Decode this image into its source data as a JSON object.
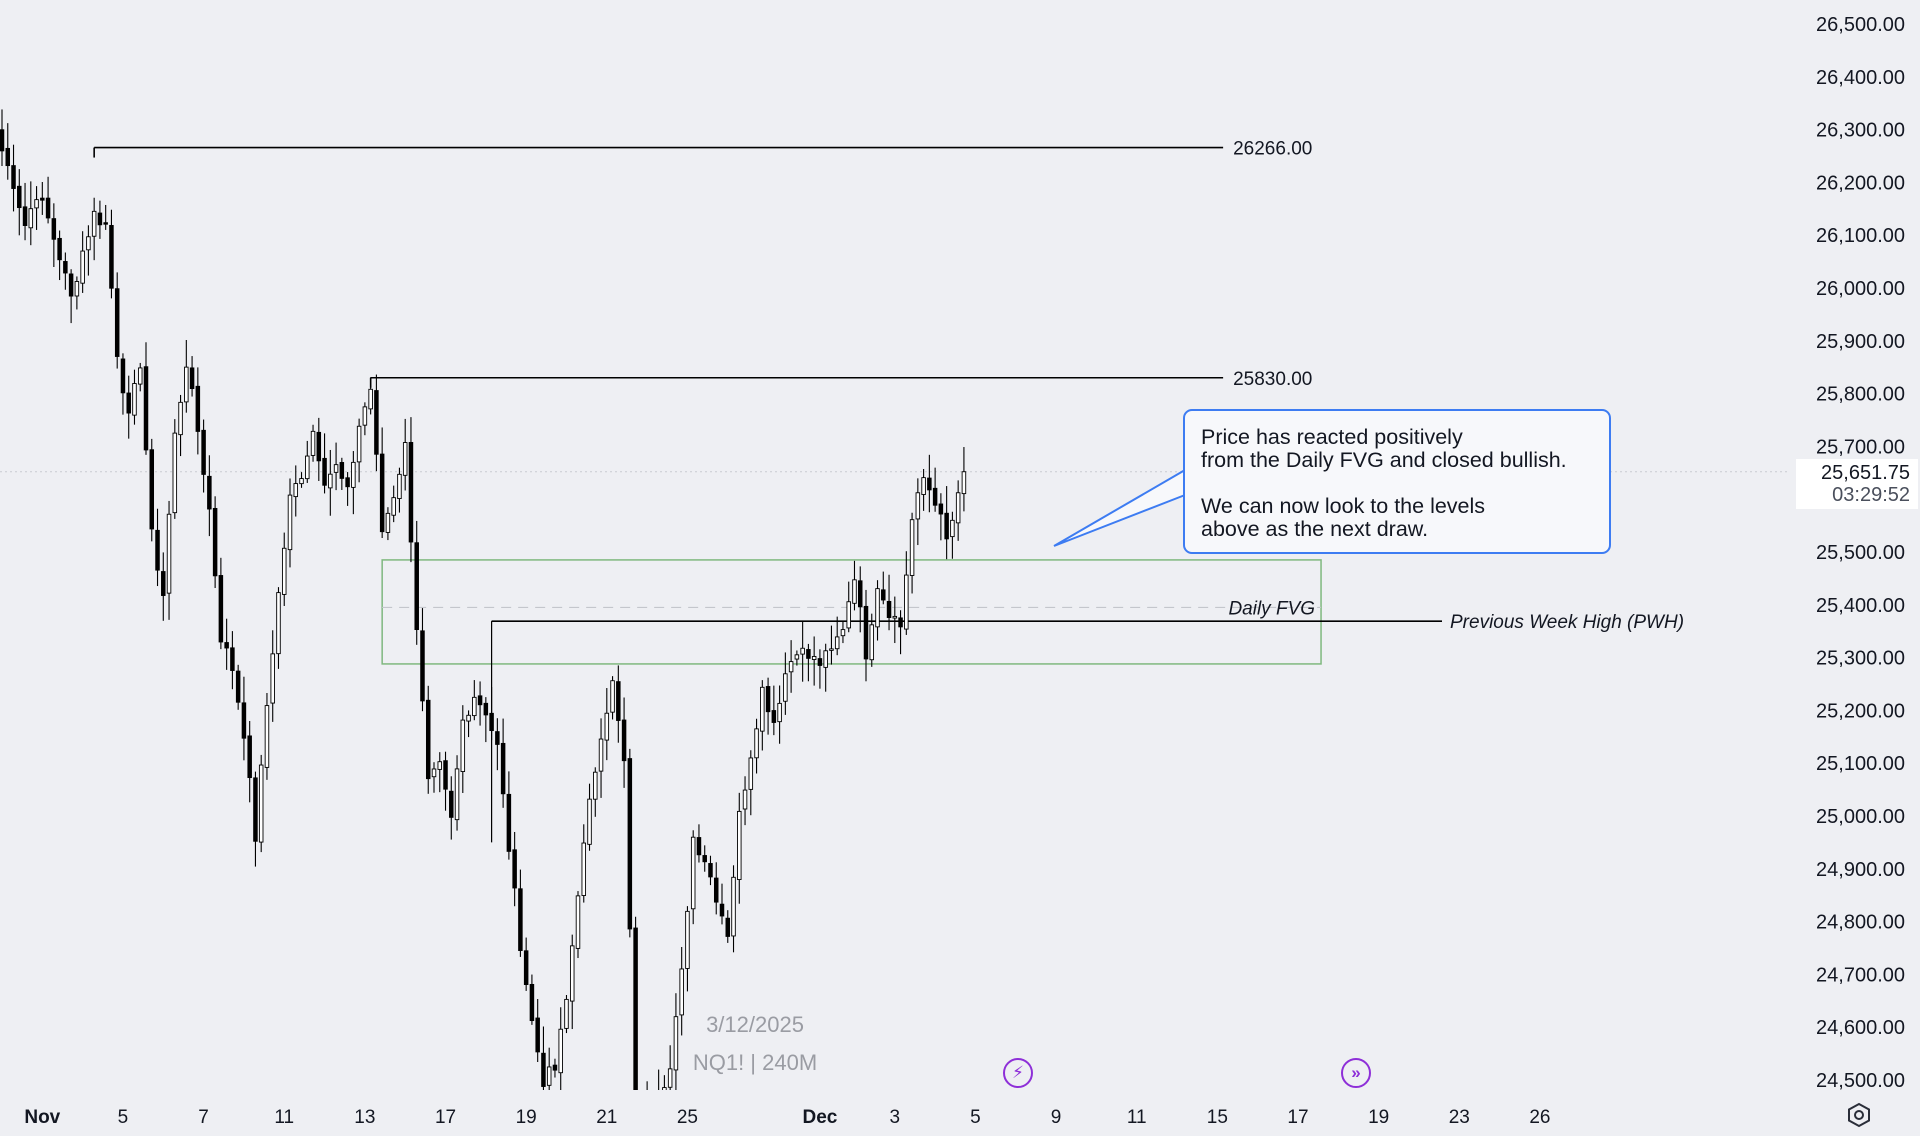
{
  "chart_data": {
    "type": "candlestick",
    "instrument_label": "NQ1! | 240M",
    "date_watermark": "3/12/2025",
    "ylim": [
      24450,
      26550
    ],
    "y_ticks": [
      24500,
      24600,
      24700,
      24800,
      24900,
      25000,
      25100,
      25200,
      25300,
      25400,
      25500,
      25600,
      25700,
      25800,
      25900,
      26000,
      26100,
      26200,
      26300,
      26400,
      26500
    ],
    "y_tick_labels": [
      "24,500.00",
      "24,600.00",
      "24,700.00",
      "24,800.00",
      "24,900.00",
      "25,000.00",
      "25,100.00",
      "25,200.00",
      "25,300.00",
      "25,400.00",
      "25,500.00",
      "25,600.00",
      "25,700.00",
      "25,800.00",
      "25,900.00",
      "26,000.00",
      "26,100.00",
      "26,200.00",
      "26,300.00",
      "26,400.00",
      "26,500.00"
    ],
    "x_ticks": [
      {
        "label": "Nov",
        "idx": 7,
        "bold": true
      },
      {
        "label": "5",
        "idx": 21
      },
      {
        "label": "7",
        "idx": 35
      },
      {
        "label": "11",
        "idx": 49
      },
      {
        "label": "13",
        "idx": 63
      },
      {
        "label": "17",
        "idx": 77
      },
      {
        "label": "19",
        "idx": 91
      },
      {
        "label": "21",
        "idx": 105
      },
      {
        "label": "25",
        "idx": 119
      },
      {
        "label": "Dec",
        "idx": 142,
        "bold": true
      },
      {
        "label": "3",
        "idx": 155
      },
      {
        "label": "5",
        "idx": 169
      },
      {
        "label": "9",
        "idx": 183
      },
      {
        "label": "11",
        "idx": 197
      },
      {
        "label": "15",
        "idx": 211
      },
      {
        "label": "17",
        "idx": 225
      },
      {
        "label": "19",
        "idx": 239
      },
      {
        "label": "23",
        "idx": 253
      },
      {
        "label": "26",
        "idx": 267
      }
    ],
    "current_price": "25,651.75",
    "countdown": "03:29:52",
    "levels": [
      {
        "label": "26266.00",
        "value": 26266,
        "from_idx": 16,
        "to_idx": 212
      },
      {
        "label": "25830.00",
        "value": 25830,
        "from_idx": 64,
        "to_idx": 212
      }
    ],
    "pwh": {
      "label": "Previous Week High (PWH)",
      "value": 25369,
      "from_idx": 85,
      "to_idx": 250
    },
    "fvg": {
      "label": "Daily FVG",
      "top": 25485,
      "bottom": 25288,
      "mid": 25395,
      "from_idx": 66,
      "to_idx": 229
    },
    "annotation": {
      "paragraph1": "Price has reacted positively\nfrom the Daily FVG and closed bullish.",
      "paragraph2": "We can now look to the levels\nabove as the next draw."
    },
    "keypoints": [
      [
        0,
        26260
      ],
      [
        2,
        26200
      ],
      [
        4,
        26120
      ],
      [
        6,
        26180
      ],
      [
        8,
        26130
      ],
      [
        10,
        26060
      ],
      [
        12,
        25980
      ],
      [
        14,
        26070
      ],
      [
        16,
        26140
      ],
      [
        18,
        26120
      ],
      [
        20,
        25880
      ],
      [
        22,
        25750
      ],
      [
        24,
        25860
      ],
      [
        26,
        25530
      ],
      [
        28,
        25420
      ],
      [
        30,
        25720
      ],
      [
        32,
        25860
      ],
      [
        34,
        25730
      ],
      [
        36,
        25580
      ],
      [
        38,
        25340
      ],
      [
        40,
        25280
      ],
      [
        42,
        25160
      ],
      [
        44,
        24960
      ],
      [
        46,
        25210
      ],
      [
        48,
        25420
      ],
      [
        50,
        25600
      ],
      [
        52,
        25650
      ],
      [
        54,
        25730
      ],
      [
        56,
        25640
      ],
      [
        58,
        25660
      ],
      [
        60,
        25610
      ],
      [
        62,
        25740
      ],
      [
        64,
        25810
      ],
      [
        66,
        25540
      ],
      [
        68,
        25610
      ],
      [
        70,
        25700
      ],
      [
        72,
        25360
      ],
      [
        74,
        25060
      ],
      [
        76,
        25090
      ],
      [
        78,
        24990
      ],
      [
        80,
        25180
      ],
      [
        82,
        25230
      ],
      [
        84,
        25200
      ],
      [
        86,
        25130
      ],
      [
        88,
        24940
      ],
      [
        90,
        24760
      ],
      [
        92,
        24610
      ],
      [
        94,
        24500
      ],
      [
        96,
        24520
      ],
      [
        98,
        24650
      ],
      [
        100,
        24860
      ],
      [
        102,
        25020
      ],
      [
        104,
        25160
      ],
      [
        106,
        25250
      ],
      [
        108,
        25100
      ],
      [
        110,
        24450
      ],
      [
        112,
        24430
      ],
      [
        114,
        24480
      ],
      [
        116,
        24520
      ],
      [
        118,
        24700
      ],
      [
        120,
        24960
      ],
      [
        122,
        24920
      ],
      [
        124,
        24850
      ],
      [
        126,
        24780
      ],
      [
        128,
        25000
      ],
      [
        130,
        25120
      ],
      [
        132,
        25240
      ],
      [
        134,
        25180
      ],
      [
        136,
        25270
      ],
      [
        138,
        25320
      ],
      [
        140,
        25300
      ],
      [
        142,
        25290
      ],
      [
        144,
        25310
      ],
      [
        146,
        25360
      ],
      [
        148,
        25460
      ],
      [
        150,
        25310
      ],
      [
        152,
        25440
      ],
      [
        154,
        25390
      ],
      [
        156,
        25360
      ],
      [
        158,
        25560
      ],
      [
        160,
        25640
      ],
      [
        162,
        25600
      ],
      [
        164,
        25520
      ],
      [
        166,
        25600
      ],
      [
        167,
        25652
      ]
    ]
  },
  "icons": {
    "lightning": "lightning-icon",
    "forward": "fast-forward-icon",
    "settings": "gear-icon"
  },
  "colors": {
    "background": "#eeeff3",
    "candle": "#000000",
    "fvg_border": "#7fb87f",
    "callout_border": "#3d7cf2",
    "event_icon": "#8e2fd8"
  }
}
